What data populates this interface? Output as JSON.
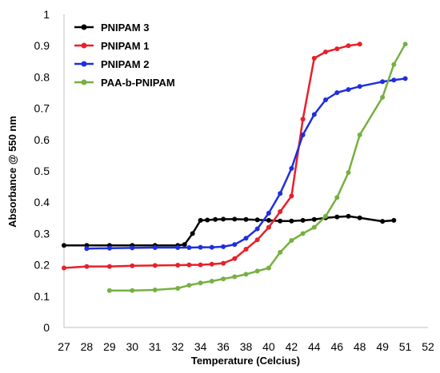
{
  "chart_data": {
    "type": "line",
    "title": "",
    "xlabel": "Temperature (Celcius)",
    "ylabel": "Absorbance @ 550 nm",
    "xlim": [
      27,
      52
    ],
    "ylim": [
      0,
      1
    ],
    "x_ticks": [
      "27",
      "28",
      "29",
      "30",
      "31",
      "32",
      "34",
      "36",
      "38",
      "40",
      "42",
      "44",
      "46",
      "48",
      "49",
      "51",
      "52"
    ],
    "y_ticks": [
      "0",
      "0.1",
      "0.2",
      "0.3",
      "0.4",
      "0.5",
      "0.6",
      "0.7",
      "0.8",
      "0.9",
      "1"
    ],
    "grid": false,
    "legend_position": "top-left",
    "series": [
      {
        "name": "PNIPAM 3",
        "color": "#000000",
        "points": [
          [
            27,
            0.262
          ],
          [
            28,
            0.262
          ],
          [
            29,
            0.262
          ],
          [
            30,
            0.262
          ],
          [
            31,
            0.262
          ],
          [
            32,
            0.262
          ],
          [
            32.6,
            0.265
          ],
          [
            33.3,
            0.3
          ],
          [
            34,
            0.342
          ],
          [
            34.6,
            0.343
          ],
          [
            35.3,
            0.345
          ],
          [
            36,
            0.346
          ],
          [
            37,
            0.346
          ],
          [
            38,
            0.345
          ],
          [
            39,
            0.344
          ],
          [
            40,
            0.342
          ],
          [
            41,
            0.34
          ],
          [
            42,
            0.34
          ],
          [
            43,
            0.342
          ],
          [
            44,
            0.345
          ],
          [
            45,
            0.35
          ],
          [
            46,
            0.353
          ],
          [
            47,
            0.355
          ],
          [
            48,
            0.35
          ],
          [
            49,
            0.339
          ],
          [
            50,
            0.342
          ]
        ]
      },
      {
        "name": "PNIPAM 1",
        "color": "#e8202a",
        "points": [
          [
            27,
            0.19
          ],
          [
            28,
            0.195
          ],
          [
            29,
            0.195
          ],
          [
            30,
            0.197
          ],
          [
            31,
            0.198
          ],
          [
            32,
            0.199
          ],
          [
            33,
            0.2
          ],
          [
            34,
            0.2
          ],
          [
            35,
            0.202
          ],
          [
            36,
            0.205
          ],
          [
            37,
            0.22
          ],
          [
            38,
            0.25
          ],
          [
            39,
            0.28
          ],
          [
            40,
            0.32
          ],
          [
            41,
            0.37
          ],
          [
            42,
            0.42
          ],
          [
            43,
            0.665
          ],
          [
            44,
            0.86
          ],
          [
            45,
            0.88
          ],
          [
            46,
            0.89
          ],
          [
            47,
            0.9
          ],
          [
            48,
            0.905
          ]
        ]
      },
      {
        "name": "PNIPAM 2",
        "color": "#1f2ee0",
        "points": [
          [
            28,
            0.252
          ],
          [
            29,
            0.253
          ],
          [
            30,
            0.254
          ],
          [
            31,
            0.255
          ],
          [
            32,
            0.255
          ],
          [
            33,
            0.255
          ],
          [
            34,
            0.256
          ],
          [
            35,
            0.256
          ],
          [
            36,
            0.258
          ],
          [
            37,
            0.265
          ],
          [
            38,
            0.285
          ],
          [
            39,
            0.315
          ],
          [
            40,
            0.365
          ],
          [
            41,
            0.428
          ],
          [
            42,
            0.508
          ],
          [
            43,
            0.615
          ],
          [
            44,
            0.68
          ],
          [
            45,
            0.727
          ],
          [
            46,
            0.75
          ],
          [
            47,
            0.76
          ],
          [
            48,
            0.77
          ],
          [
            49,
            0.785
          ],
          [
            50,
            0.79
          ],
          [
            51,
            0.795
          ]
        ]
      },
      {
        "name": "PAA-b-PNIPAM",
        "color": "#77b042",
        "points": [
          [
            29,
            0.118
          ],
          [
            30,
            0.118
          ],
          [
            31,
            0.12
          ],
          [
            32,
            0.125
          ],
          [
            33,
            0.135
          ],
          [
            34,
            0.142
          ],
          [
            35,
            0.148
          ],
          [
            36,
            0.155
          ],
          [
            37,
            0.162
          ],
          [
            38,
            0.17
          ],
          [
            39,
            0.18
          ],
          [
            40,
            0.19
          ],
          [
            41,
            0.24
          ],
          [
            42,
            0.278
          ],
          [
            43,
            0.3
          ],
          [
            44,
            0.32
          ],
          [
            45,
            0.355
          ],
          [
            46,
            0.415
          ],
          [
            47,
            0.495
          ],
          [
            48,
            0.615
          ],
          [
            49,
            0.735
          ],
          [
            50,
            0.84
          ],
          [
            51,
            0.905
          ]
        ]
      }
    ]
  }
}
